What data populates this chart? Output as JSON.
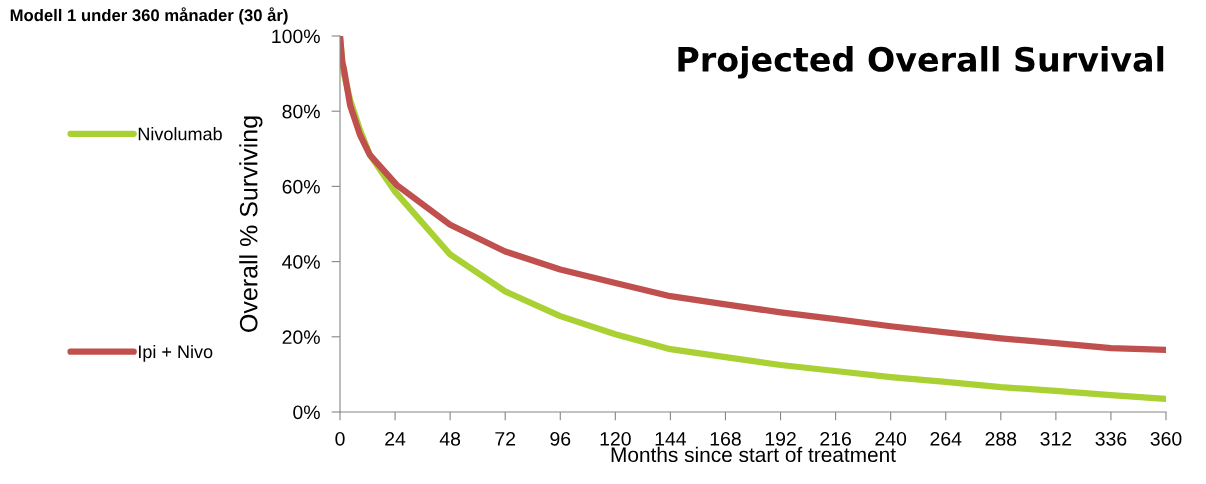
{
  "chart_data": {
    "type": "line",
    "title": "Projected Overall Survival",
    "subtitle": "Modell 1 under 360 månader (30 år)",
    "xlabel": "Months since start of treatment",
    "ylabel": "Overall % Surviving",
    "series": [
      {
        "name": "Nivolumab",
        "color": "#a9d134",
        "x": [
          0,
          1,
          1.7,
          4.4,
          8.7,
          13,
          24,
          48,
          72,
          96,
          120,
          144,
          168,
          192,
          216,
          240,
          264,
          288,
          312,
          336,
          360
        ],
        "values": [
          100,
          93,
          90,
          83,
          75,
          68.4,
          58.6,
          41.9,
          32.1,
          25.5,
          20.7,
          16.7,
          14.6,
          12.5,
          10.9,
          9.3,
          8.0,
          6.6,
          5.6,
          4.5,
          3.5
        ]
      },
      {
        "name": "Ipi + Nivo",
        "color": "#c0504d",
        "x": [
          0,
          1,
          1.7,
          4.4,
          8.7,
          13,
          24.7,
          48,
          72,
          96,
          120,
          144,
          168,
          192,
          216,
          240,
          264,
          288,
          312,
          336,
          360
        ],
        "values": [
          100,
          93,
          91.3,
          81.6,
          73.7,
          68.4,
          60.4,
          49.8,
          42.7,
          37.9,
          34.3,
          30.8,
          28.6,
          26.5,
          24.7,
          22.8,
          21.2,
          19.6,
          18.3,
          17.0,
          16.5
        ]
      }
    ],
    "xlim": [
      0,
      360
    ],
    "xticks": [
      0,
      24,
      48,
      72,
      96,
      120,
      144,
      168,
      192,
      216,
      240,
      264,
      288,
      312,
      336,
      360
    ],
    "ylim": [
      0,
      100
    ],
    "yticks": [
      {
        "value": 0,
        "label": "0%"
      },
      {
        "value": 20,
        "label": "20%"
      },
      {
        "value": 40,
        "label": "40%"
      },
      {
        "value": 60,
        "label": "60%"
      },
      {
        "value": 80,
        "label": "80%"
      },
      {
        "value": 100,
        "label": "100%"
      }
    ],
    "grid": false,
    "legend": "left",
    "marker": "none",
    "line_style": "solid"
  }
}
